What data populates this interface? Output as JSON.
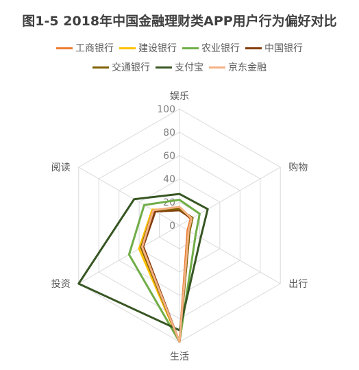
{
  "chart_data": {
    "type": "radar",
    "title": "图1-5 2018年中国金融理财类APP用户行为偏好对比",
    "axes": [
      "娱乐",
      "购物",
      "出行",
      "生活",
      "投资",
      "阅读"
    ],
    "rlim": [
      0,
      100
    ],
    "ticks": [
      0,
      20,
      40,
      60,
      80,
      100
    ],
    "grid": true,
    "legend_position": "top",
    "series": [
      {
        "name": "工商银行",
        "color": "#ED7D31",
        "values": [
          15,
          11,
          8,
          100,
          38,
          25
        ]
      },
      {
        "name": "建设银行",
        "color": "#FFC000",
        "values": [
          14,
          12,
          9,
          100,
          40,
          27
        ]
      },
      {
        "name": "农业银行",
        "color": "#70AD47",
        "values": [
          22,
          20,
          16,
          100,
          50,
          35
        ]
      },
      {
        "name": "中国银行",
        "color": "#843C0C",
        "values": [
          13,
          12,
          9,
          100,
          36,
          24
        ]
      },
      {
        "name": "交通银行",
        "color": "#7F6000",
        "values": [
          14,
          13,
          10,
          100,
          38,
          26
        ]
      },
      {
        "name": "支付宝",
        "color": "#375623",
        "values": [
          27,
          28,
          21,
          90,
          100,
          45
        ]
      },
      {
        "name": "京东金融",
        "color": "#F4B183",
        "values": [
          16,
          12,
          9,
          100,
          37,
          26
        ]
      }
    ]
  },
  "legend": {
    "row1": [
      "工商银行",
      "建设银行",
      "农业银行",
      "中国银行"
    ],
    "row2": [
      "交通银行",
      "支付宝",
      "京东金融"
    ]
  }
}
